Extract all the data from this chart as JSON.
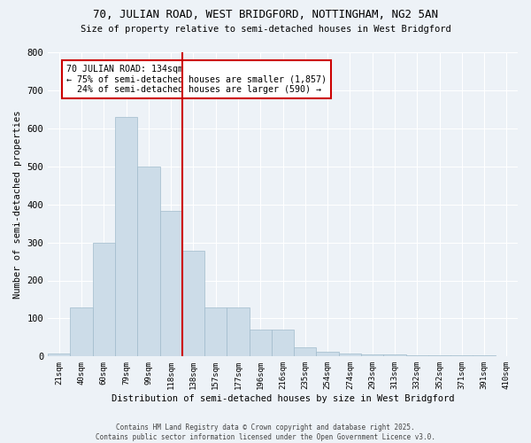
{
  "title1": "70, JULIAN ROAD, WEST BRIDGFORD, NOTTINGHAM, NG2 5AN",
  "title2": "Size of property relative to semi-detached houses in West Bridgford",
  "xlabel": "Distribution of semi-detached houses by size in West Bridgford",
  "ylabel": "Number of semi-detached properties",
  "categories": [
    "21sqm",
    "40sqm",
    "60sqm",
    "79sqm",
    "99sqm",
    "118sqm",
    "138sqm",
    "157sqm",
    "177sqm",
    "196sqm",
    "216sqm",
    "235sqm",
    "254sqm",
    "274sqm",
    "293sqm",
    "313sqm",
    "332sqm",
    "352sqm",
    "371sqm",
    "391sqm",
    "410sqm"
  ],
  "values": [
    8,
    128,
    300,
    630,
    500,
    383,
    278,
    130,
    130,
    70,
    70,
    25,
    12,
    8,
    5,
    5,
    3,
    3,
    2,
    2,
    1
  ],
  "bar_color": "#ccdce8",
  "bar_edge_color": "#a0bbcc",
  "vline_color": "#cc0000",
  "annotation_text": "70 JULIAN ROAD: 134sqm\n← 75% of semi-detached houses are smaller (1,857)\n  24% of semi-detached houses are larger (590) →",
  "annotation_box_color": "#ffffff",
  "annotation_box_edge": "#cc0000",
  "ylim": [
    0,
    800
  ],
  "yticks": [
    0,
    100,
    200,
    300,
    400,
    500,
    600,
    700,
    800
  ],
  "footnote": "Contains HM Land Registry data © Crown copyright and database right 2025.\nContains public sector information licensed under the Open Government Licence v3.0.",
  "bg_color": "#edf2f7",
  "grid_color": "#ffffff"
}
